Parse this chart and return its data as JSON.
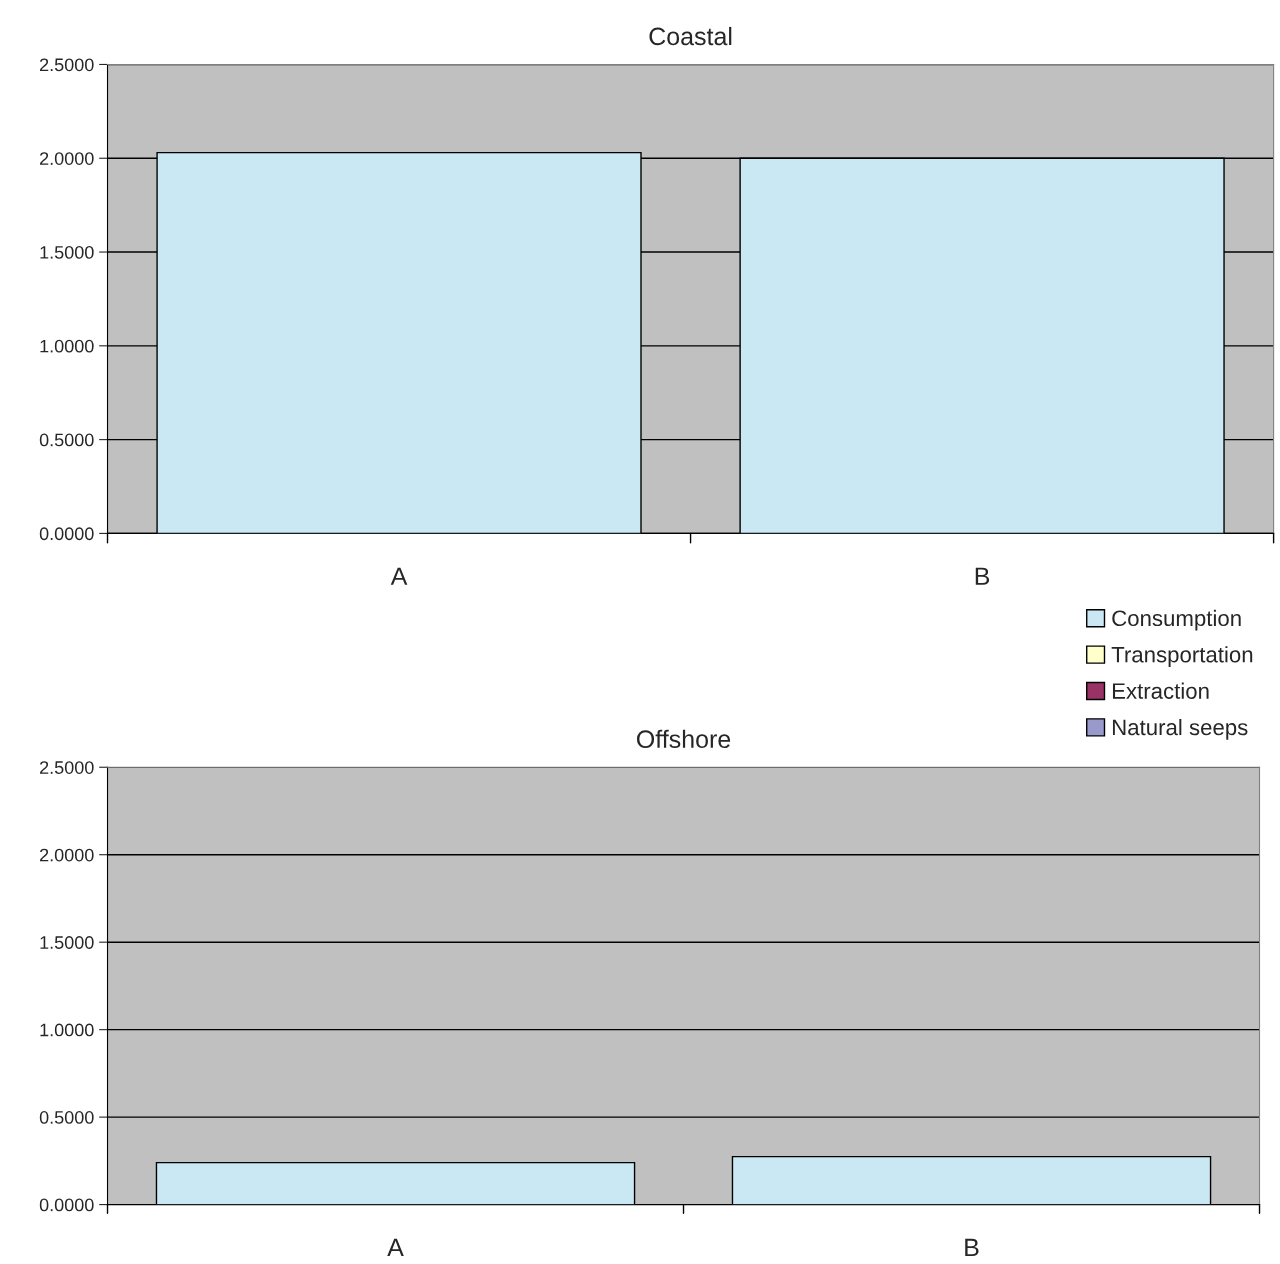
{
  "chart_data": [
    {
      "type": "bar",
      "title": "Coastal",
      "categories": [
        "A",
        "B"
      ],
      "stacked": true,
      "ylim": [
        0,
        2.5
      ],
      "yticks": [
        {
          "value": 0,
          "label": "0.0000"
        },
        {
          "value": 0.5,
          "label": "0.5000"
        },
        {
          "value": 1,
          "label": "1.0000"
        },
        {
          "value": 1.5,
          "label": "1.5000"
        },
        {
          "value": 2,
          "label": "2.0000"
        },
        {
          "value": 2.5,
          "label": "2.5000"
        }
      ],
      "grid": "y",
      "legend": "bottom right",
      "series": [
        {
          "name": "Consumption",
          "color": "#cae8f3",
          "values": [
            2.03,
            2.0
          ]
        },
        {
          "name": "Transportation",
          "color": "#ffffcc",
          "values": [
            0,
            0
          ]
        },
        {
          "name": "Extraction",
          "color": "#993366",
          "values": [
            0,
            0
          ]
        },
        {
          "name": "Natural seeps",
          "color": "#9999cc",
          "values": [
            0,
            0
          ]
        }
      ]
    },
    {
      "type": "bar",
      "title": "Offshore",
      "categories": [
        "A",
        "B"
      ],
      "stacked": true,
      "ylim": [
        0,
        2.5
      ],
      "yticks": [
        {
          "value": 0,
          "label": "0.0000"
        },
        {
          "value": 0.5,
          "label": "0.5000"
        },
        {
          "value": 1,
          "label": "1.0000"
        },
        {
          "value": 1.5,
          "label": "1.5000"
        },
        {
          "value": 2,
          "label": "2.0000"
        },
        {
          "value": 2.5,
          "label": "2.5000"
        }
      ],
      "grid": "y",
      "series": [
        {
          "color": "#cae8f3",
          "values": [
            0.24,
            0.274
          ]
        },
        {
          "color": "#ffffcc",
          "values": [
            0,
            0
          ]
        },
        {
          "color": "#993366",
          "values": [
            0,
            0
          ]
        },
        {
          "color": "#9999cc",
          "values": [
            0,
            0
          ]
        }
      ]
    }
  ]
}
